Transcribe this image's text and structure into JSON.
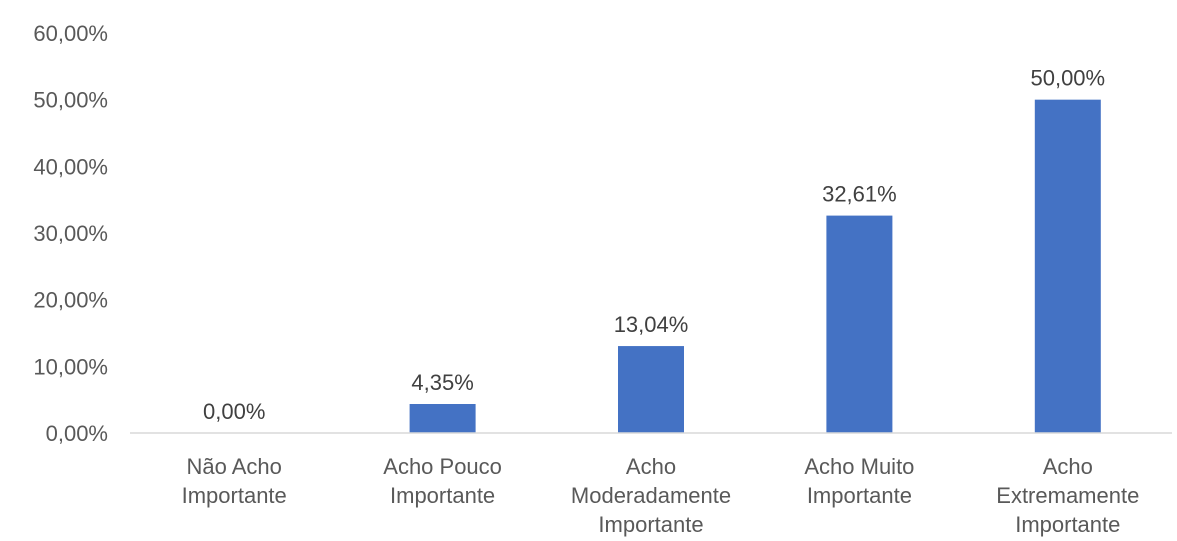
{
  "chart_data": {
    "type": "bar",
    "title": "",
    "xlabel": "",
    "ylabel": "",
    "categories": [
      [
        "Não Acho",
        "Importante"
      ],
      [
        "Acho Pouco",
        "Importante"
      ],
      [
        "Acho",
        "Moderadamente",
        "Importante"
      ],
      [
        "Acho Muito",
        "Importante"
      ],
      [
        "Acho",
        "Extremamente",
        "Importante"
      ]
    ],
    "values": [
      0.0,
      4.35,
      13.04,
      32.61,
      50.0
    ],
    "data_labels": [
      "0,00%",
      "4,35%",
      "13,04%",
      "32,61%",
      "50,00%"
    ],
    "ylim": [
      0,
      60
    ],
    "yticks": [
      0,
      10,
      20,
      30,
      40,
      50,
      60
    ],
    "ytick_labels": [
      "0,00%",
      "10,00%",
      "20,00%",
      "30,00%",
      "40,00%",
      "50,00%",
      "60,00%"
    ],
    "grid": false,
    "legend": "none",
    "bar_color": "#4472C4",
    "axis_color": "#D9D9D9"
  }
}
